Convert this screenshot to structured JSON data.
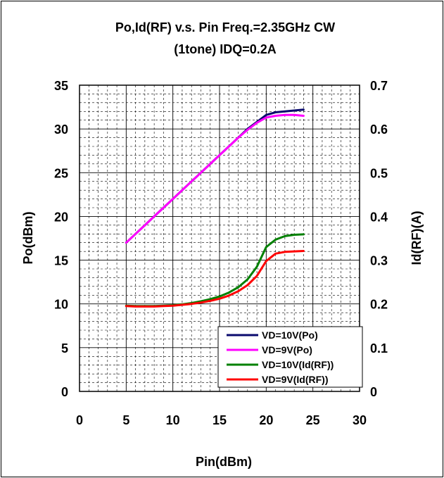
{
  "chart_data": {
    "type": "line",
    "title_line1": "Po,Id(RF)  v.s.  Pin    Freq.=2.35GHz  CW",
    "title_line2": "(1tone)  IDQ=0.2A",
    "xlabel": "Pin(dBm)",
    "ylabel_left": "Po(dBm)",
    "ylabel_right": "Id(RF)(A)",
    "xlim": [
      0,
      30
    ],
    "ylim_left": [
      0,
      35
    ],
    "ylim_right": [
      0,
      0.7
    ],
    "x_ticks": [
      0,
      5,
      10,
      15,
      20,
      25,
      30
    ],
    "y_ticks_left": [
      0,
      5,
      10,
      15,
      20,
      25,
      30,
      35
    ],
    "y_ticks_right": [
      0,
      0.1,
      0.2,
      0.3,
      0.4,
      0.5,
      0.6,
      0.7
    ],
    "grid": true,
    "legend_position": "bottom-right",
    "series": [
      {
        "name": "VD=10V(Po)",
        "axis": "left",
        "color": "#0a0a6e",
        "x": [
          5,
          6,
          7,
          8,
          9,
          10,
          11,
          12,
          13,
          14,
          15,
          16,
          17,
          18,
          19,
          20,
          21,
          22,
          23,
          24
        ],
        "y": [
          17.0,
          18.0,
          19.0,
          20.0,
          21.0,
          22.0,
          23.0,
          24.0,
          25.0,
          26.0,
          27.0,
          28.0,
          29.0,
          30.0,
          30.8,
          31.6,
          31.9,
          32.0,
          32.1,
          32.2
        ]
      },
      {
        "name": "VD=9V(Po)",
        "axis": "left",
        "color": "#ff00ff",
        "x": [
          5,
          6,
          7,
          8,
          9,
          10,
          11,
          12,
          13,
          14,
          15,
          16,
          17,
          18,
          19,
          20,
          21,
          22,
          23,
          24
        ],
        "y": [
          17.0,
          18.0,
          19.0,
          20.0,
          21.0,
          22.0,
          23.0,
          24.0,
          25.0,
          26.0,
          27.0,
          28.0,
          29.0,
          29.9,
          30.7,
          31.3,
          31.5,
          31.6,
          31.6,
          31.5
        ]
      },
      {
        "name": "VD=10V(Id(RF))",
        "axis": "right",
        "color": "#008000",
        "x": [
          5,
          6,
          7,
          8,
          9,
          10,
          11,
          12,
          13,
          14,
          15,
          16,
          17,
          18,
          19,
          20,
          21,
          22,
          23,
          24
        ],
        "y": [
          0.196,
          0.195,
          0.195,
          0.195,
          0.196,
          0.197,
          0.199,
          0.202,
          0.206,
          0.211,
          0.217,
          0.226,
          0.238,
          0.256,
          0.285,
          0.33,
          0.347,
          0.355,
          0.358,
          0.359
        ]
      },
      {
        "name": "VD=9V(Id(RF))",
        "axis": "right",
        "color": "#ff0000",
        "x": [
          5,
          6,
          7,
          8,
          9,
          10,
          11,
          12,
          13,
          14,
          15,
          16,
          17,
          18,
          19,
          20,
          21,
          22,
          23,
          24
        ],
        "y": [
          0.195,
          0.194,
          0.194,
          0.194,
          0.195,
          0.196,
          0.198,
          0.2,
          0.203,
          0.207,
          0.212,
          0.219,
          0.229,
          0.243,
          0.264,
          0.298,
          0.315,
          0.319,
          0.32,
          0.321
        ]
      }
    ]
  }
}
